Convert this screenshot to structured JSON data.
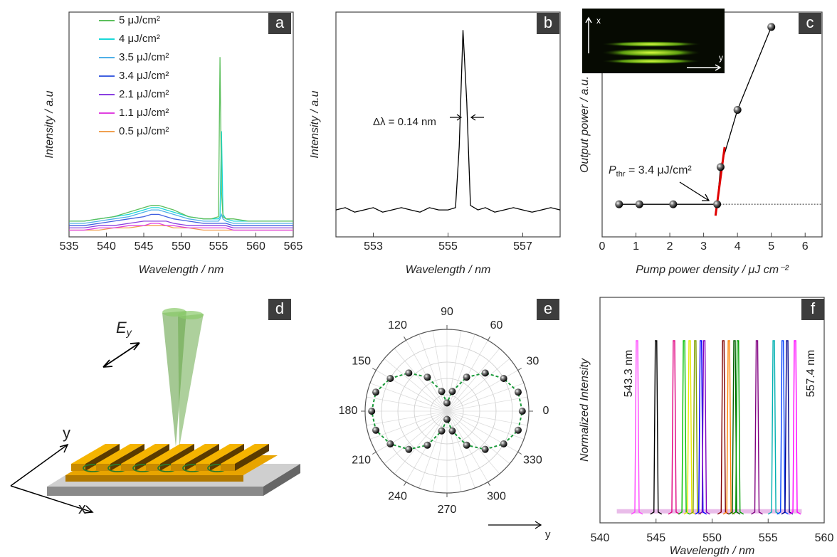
{
  "chart_data": [
    {
      "type": "line",
      "panel_label": "a",
      "x_label": "Wavelength / nm",
      "y_label": "Intensity / a.u",
      "x": [
        535,
        537,
        539,
        541,
        543,
        545,
        546,
        547,
        548,
        549,
        551,
        553,
        554,
        555,
        555.2,
        555.4,
        555.6,
        556,
        557,
        559,
        561,
        563,
        565
      ],
      "xlim": [
        535,
        565
      ],
      "xticks": [
        535,
        540,
        545,
        550,
        555,
        560,
        565
      ],
      "ylim": [
        0,
        100
      ],
      "series": [
        {
          "name": "5 μJ/cm²",
          "color": "#5cbf5c",
          "values": [
            7,
            7,
            8,
            9,
            11,
            13,
            14,
            14,
            13,
            12,
            9,
            8,
            8,
            9,
            80,
            20,
            9,
            8,
            8,
            7,
            7,
            7,
            7
          ]
        },
        {
          "name": "4 μJ/cm²",
          "color": "#19d8d8",
          "values": [
            7,
            7,
            8,
            9,
            10,
            12,
            13,
            13,
            12,
            11,
            9,
            8,
            8,
            8,
            9,
            47,
            10,
            8,
            7,
            7,
            7,
            7,
            7
          ]
        },
        {
          "name": "3.5 μJ/cm²",
          "color": "#4fb0e8",
          "values": [
            6,
            6,
            7,
            8,
            9,
            11,
            12,
            12,
            11,
            10,
            8,
            7,
            7,
            7,
            8,
            10,
            8,
            7,
            6,
            6,
            6,
            6,
            6
          ]
        },
        {
          "name": "3.4 μJ/cm²",
          "color": "#4060e0",
          "values": [
            5,
            5,
            6,
            7,
            8,
            9,
            10,
            10,
            9,
            8,
            7,
            6,
            6,
            6,
            6,
            6,
            6,
            6,
            5,
            5,
            5,
            5,
            5
          ]
        },
        {
          "name": "2.1 μJ/cm²",
          "color": "#8a40e0",
          "values": [
            4,
            4,
            5,
            5,
            6,
            7,
            7,
            7,
            7,
            6,
            5,
            5,
            5,
            5,
            5,
            5,
            5,
            5,
            4,
            4,
            4,
            4,
            4
          ]
        },
        {
          "name": "1.1 μJ/cm²",
          "color": "#e040e0",
          "values": [
            3,
            3,
            4,
            4,
            5,
            5,
            6,
            6,
            5,
            5,
            4,
            4,
            4,
            4,
            4,
            4,
            4,
            4,
            3,
            3,
            3,
            3,
            3
          ]
        },
        {
          "name": "0.5 μJ/cm²",
          "color": "#f0a050",
          "values": [
            3,
            3,
            3,
            4,
            4,
            5,
            5,
            5,
            5,
            4,
            4,
            3,
            3,
            3,
            3,
            3,
            3,
            3,
            3,
            3,
            3,
            3,
            3
          ]
        }
      ]
    },
    {
      "type": "line",
      "panel_label": "b",
      "x_label": "Wavelength / nm",
      "y_label": "Intensity / a.u",
      "annotation": "Δλ = 0.14 nm",
      "x": [
        552,
        552.25,
        552.5,
        552.75,
        553,
        553.25,
        553.5,
        553.75,
        554,
        554.25,
        554.5,
        554.75,
        555,
        555.2,
        555.3,
        555.4,
        555.5,
        555.6,
        555.8,
        556,
        556.25,
        556.5,
        556.75,
        557,
        557.25,
        557.5,
        557.75,
        558
      ],
      "xlim": [
        552,
        558
      ],
      "xticks": [
        553,
        555,
        557
      ],
      "ylim": [
        0,
        100
      ],
      "series": [
        {
          "color": "#000000",
          "values": [
            12,
            13,
            11,
            12,
            13,
            11,
            12,
            13,
            12,
            11,
            13,
            12,
            12,
            13,
            40,
            92,
            60,
            14,
            12,
            13,
            11,
            12,
            13,
            12,
            11,
            12,
            13,
            12
          ]
        }
      ]
    },
    {
      "type": "scatter",
      "panel_label": "c",
      "x_label": "Pump power density / μJ cm⁻²",
      "y_label": "Output power / a.u.",
      "annotation": {
        "symbol": "P",
        "subscript": "thr",
        "text": " = 3.4 μJ/cm²"
      },
      "inset": {
        "x_label": "x",
        "y_label": "y"
      },
      "x": [
        0.5,
        1.1,
        2.1,
        3.4,
        3.5,
        4,
        5
      ],
      "values": [
        0,
        0,
        0,
        0,
        13,
        33,
        62
      ],
      "color": "#000000",
      "xlim": [
        0,
        6.5
      ],
      "xticks": [
        0,
        1,
        2,
        3,
        4,
        5,
        6
      ],
      "ylim": [
        -11.4,
        67.2
      ],
      "baseline": 0,
      "fit": {
        "x": [
          3.35,
          3.62
        ],
        "y": [
          -4,
          20
        ],
        "color": "#e00000"
      }
    },
    {
      "type": "polar",
      "panel_label": "e",
      "direction_label": "y",
      "color": "#1a9a3a",
      "theta": [
        0,
        15,
        30,
        45,
        60,
        75,
        90,
        105,
        120,
        135,
        150,
        165,
        180,
        195,
        210,
        225,
        240,
        255,
        270,
        285,
        300,
        315,
        330,
        345
      ],
      "r": [
        0.92,
        0.9,
        0.8,
        0.66,
        0.48,
        0.25,
        0.1,
        0.25,
        0.48,
        0.66,
        0.8,
        0.9,
        0.92,
        0.9,
        0.8,
        0.66,
        0.48,
        0.25,
        0.1,
        0.25,
        0.48,
        0.66,
        0.8,
        0.9
      ],
      "rlim": [
        0,
        1
      ],
      "rticks": [
        0.2,
        0.4,
        0.6,
        0.8,
        1
      ],
      "thetaticks": [
        0,
        30,
        60,
        90,
        120,
        150,
        180,
        210,
        240,
        270,
        300,
        330
      ]
    },
    {
      "type": "peaks",
      "panel_label": "f",
      "x_label": "Wavelength / nm",
      "y_label": "Normalized Intensity",
      "annotations": [
        "543.3 nm",
        "557.4 nm"
      ],
      "x": [
        543.3,
        545,
        546.6,
        547.5,
        548,
        548.5,
        549,
        549.3,
        551,
        551.5,
        552,
        552.3,
        554,
        555.5,
        556.3,
        556.7,
        557.4
      ],
      "values": [
        1,
        1,
        1,
        1,
        1,
        1,
        1,
        1,
        1,
        1,
        1,
        1,
        1,
        1,
        1,
        1,
        1
      ],
      "colors": [
        "#ff44ff",
        "#000000",
        "#e0007f",
        "#00c000",
        "#e8e800",
        "#80a000",
        "#0000ff",
        "#8000c0",
        "#800000",
        "#ff8000",
        "#006000",
        "#00a000",
        "#800080",
        "#00b0b0",
        "#0040ff",
        "#00008b",
        "#ff00ff"
      ],
      "xlim": [
        540,
        560
      ],
      "xticks": [
        540,
        545,
        550,
        555,
        560
      ],
      "ylim": [
        -0.05,
        1.25
      ]
    }
  ],
  "diagram": {
    "panel_label": "d",
    "field_label": "E",
    "field_subscript": "y",
    "axis_y": "y",
    "axis_x": "x"
  }
}
